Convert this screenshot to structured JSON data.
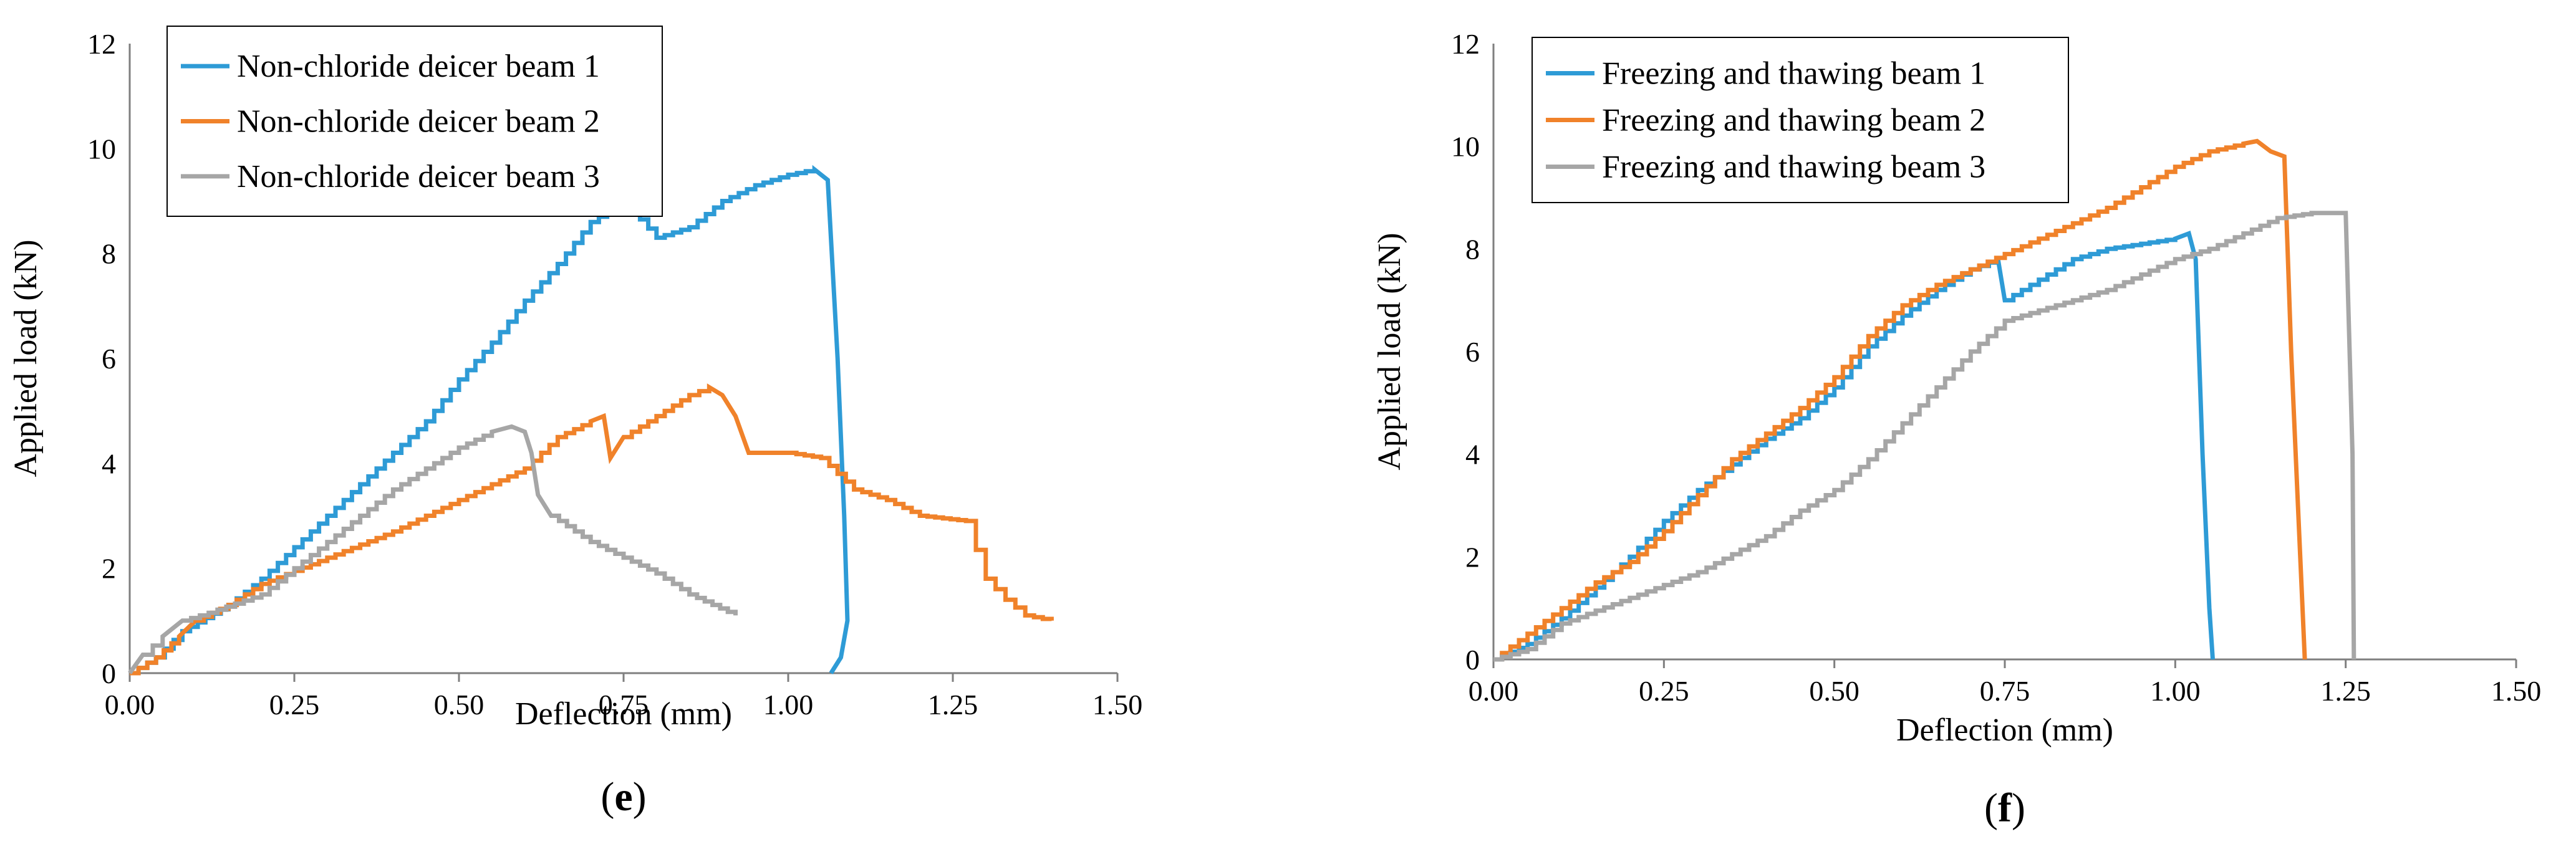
{
  "chart_data": [
    {
      "type": "line",
      "panel_label": "e",
      "xlabel": "Deflection (mm)",
      "ylabel": "Applied load (kN)",
      "xlim": [
        0,
        1.5
      ],
      "ylim": [
        0,
        12
      ],
      "xticks": [
        "0.00",
        "0.25",
        "0.50",
        "0.75",
        "1.00",
        "1.25",
        "1.50"
      ],
      "yticks": [
        "0",
        "2",
        "4",
        "6",
        "8",
        "10",
        "12"
      ],
      "grid": false,
      "legend_position": "top-left",
      "series": [
        {
          "name": "Non-chloride deicer beam 1",
          "color": "#2e9bd6",
          "points": [
            [
              0,
              0
            ],
            [
              0.04,
              0.3
            ],
            [
              0.08,
              0.8
            ],
            [
              0.15,
              1.3
            ],
            [
              0.2,
              1.8
            ],
            [
              0.25,
              2.4
            ],
            [
              0.3,
              3.0
            ],
            [
              0.35,
              3.6
            ],
            [
              0.4,
              4.2
            ],
            [
              0.45,
              4.8
            ],
            [
              0.5,
              5.6
            ],
            [
              0.55,
              6.3
            ],
            [
              0.6,
              7.1
            ],
            [
              0.65,
              7.8
            ],
            [
              0.7,
              8.6
            ],
            [
              0.75,
              9.0
            ],
            [
              0.8,
              8.3
            ],
            [
              0.85,
              8.5
            ],
            [
              0.9,
              9.0
            ],
            [
              0.95,
              9.3
            ],
            [
              1.0,
              9.5
            ],
            [
              1.04,
              9.6
            ],
            [
              1.06,
              9.4
            ],
            [
              1.075,
              6.0
            ],
            [
              1.085,
              3.0
            ],
            [
              1.09,
              1.0
            ],
            [
              1.08,
              0.3
            ],
            [
              1.065,
              0
            ]
          ]
        },
        {
          "name": "Non-chloride deicer beam 2",
          "color": "#f0822a",
          "points": [
            [
              0,
              0
            ],
            [
              0.04,
              0.3
            ],
            [
              0.075,
              0.7
            ],
            [
              0.1,
              1.0
            ],
            [
              0.15,
              1.3
            ],
            [
              0.2,
              1.7
            ],
            [
              0.3,
              2.2
            ],
            [
              0.4,
              2.7
            ],
            [
              0.5,
              3.3
            ],
            [
              0.6,
              3.9
            ],
            [
              0.65,
              4.5
            ],
            [
              0.7,
              4.8
            ],
            [
              0.72,
              4.9
            ],
            [
              0.73,
              4.1
            ],
            [
              0.75,
              4.5
            ],
            [
              0.8,
              4.9
            ],
            [
              0.85,
              5.3
            ],
            [
              0.88,
              5.45
            ],
            [
              0.9,
              5.3
            ],
            [
              0.92,
              4.9
            ],
            [
              0.94,
              4.2
            ],
            [
              1.0,
              4.2
            ],
            [
              1.05,
              4.1
            ],
            [
              1.1,
              3.5
            ],
            [
              1.15,
              3.3
            ],
            [
              1.2,
              3.0
            ],
            [
              1.27,
              2.9
            ],
            [
              1.3,
              1.8
            ],
            [
              1.33,
              1.4
            ],
            [
              1.36,
              1.1
            ],
            [
              1.4,
              1.0
            ]
          ]
        },
        {
          "name": "Non-chloride deicer beam 3",
          "color": "#a6a6a6",
          "points": [
            [
              0,
              0
            ],
            [
              0.02,
              0.35
            ],
            [
              0.05,
              0.7
            ],
            [
              0.08,
              1.0
            ],
            [
              0.12,
              1.15
            ],
            [
              0.2,
              1.5
            ],
            [
              0.3,
              2.5
            ],
            [
              0.4,
              3.5
            ],
            [
              0.5,
              4.3
            ],
            [
              0.55,
              4.6
            ],
            [
              0.58,
              4.7
            ],
            [
              0.6,
              4.6
            ],
            [
              0.61,
              4.2
            ],
            [
              0.62,
              3.4
            ],
            [
              0.64,
              3.0
            ],
            [
              0.7,
              2.5
            ],
            [
              0.8,
              1.9
            ],
            [
              0.85,
              1.5
            ],
            [
              0.92,
              1.1
            ]
          ]
        }
      ]
    },
    {
      "type": "line",
      "panel_label": "f",
      "xlabel": "Deflection (mm)",
      "ylabel": "Applied load (kN)",
      "xlim": [
        0,
        1.5
      ],
      "ylim": [
        0,
        12
      ],
      "xticks": [
        "0.00",
        "0.25",
        "0.50",
        "0.75",
        "1.00",
        "1.25",
        "1.50"
      ],
      "yticks": [
        "0",
        "2",
        "4",
        "6",
        "8",
        "10",
        "12"
      ],
      "grid": false,
      "legend_position": "top-left",
      "series": [
        {
          "name": "Freezing and thawing beam 1",
          "color": "#2e9bd6",
          "points": [
            [
              0,
              0
            ],
            [
              0.05,
              0.3
            ],
            [
              0.1,
              0.8
            ],
            [
              0.15,
              1.4
            ],
            [
              0.2,
              2.0
            ],
            [
              0.25,
              2.7
            ],
            [
              0.3,
              3.3
            ],
            [
              0.35,
              3.8
            ],
            [
              0.4,
              4.3
            ],
            [
              0.45,
              4.7
            ],
            [
              0.5,
              5.3
            ],
            [
              0.55,
              6.1
            ],
            [
              0.6,
              6.7
            ],
            [
              0.65,
              7.2
            ],
            [
              0.7,
              7.6
            ],
            [
              0.74,
              7.8
            ],
            [
              0.75,
              7.0
            ],
            [
              0.8,
              7.4
            ],
            [
              0.85,
              7.8
            ],
            [
              0.9,
              8.0
            ],
            [
              0.95,
              8.1
            ],
            [
              1.0,
              8.2
            ],
            [
              1.02,
              8.3
            ],
            [
              1.03,
              7.8
            ],
            [
              1.04,
              4.0
            ],
            [
              1.05,
              1.0
            ],
            [
              1.055,
              0
            ]
          ]
        },
        {
          "name": "Freezing and thawing beam 2",
          "color": "#f0822a",
          "points": [
            [
              0,
              0
            ],
            [
              0.05,
              0.5
            ],
            [
              0.1,
              1.0
            ],
            [
              0.15,
              1.5
            ],
            [
              0.2,
              1.9
            ],
            [
              0.25,
              2.5
            ],
            [
              0.3,
              3.2
            ],
            [
              0.35,
              3.9
            ],
            [
              0.4,
              4.4
            ],
            [
              0.45,
              4.9
            ],
            [
              0.5,
              5.5
            ],
            [
              0.55,
              6.3
            ],
            [
              0.6,
              6.9
            ],
            [
              0.65,
              7.3
            ],
            [
              0.7,
              7.6
            ],
            [
              0.75,
              7.9
            ],
            [
              0.8,
              8.2
            ],
            [
              0.85,
              8.5
            ],
            [
              0.9,
              8.8
            ],
            [
              0.95,
              9.2
            ],
            [
              1.0,
              9.6
            ],
            [
              1.05,
              9.9
            ],
            [
              1.1,
              10.05
            ],
            [
              1.12,
              10.1
            ],
            [
              1.14,
              9.9
            ],
            [
              1.16,
              9.8
            ],
            [
              1.17,
              6.0
            ],
            [
              1.18,
              3.0
            ],
            [
              1.19,
              0
            ]
          ]
        },
        {
          "name": "Freezing and thawing beam 3",
          "color": "#a6a6a6",
          "points": [
            [
              0,
              0
            ],
            [
              0.05,
              0.2
            ],
            [
              0.1,
              0.7
            ],
            [
              0.15,
              0.95
            ],
            [
              0.2,
              1.2
            ],
            [
              0.3,
              1.7
            ],
            [
              0.4,
              2.4
            ],
            [
              0.45,
              2.9
            ],
            [
              0.5,
              3.3
            ],
            [
              0.55,
              3.9
            ],
            [
              0.6,
              4.6
            ],
            [
              0.65,
              5.3
            ],
            [
              0.7,
              6.0
            ],
            [
              0.75,
              6.6
            ],
            [
              0.8,
              6.8
            ],
            [
              0.85,
              7.0
            ],
            [
              0.9,
              7.2
            ],
            [
              0.95,
              7.5
            ],
            [
              1.0,
              7.8
            ],
            [
              1.05,
              8.0
            ],
            [
              1.1,
              8.3
            ],
            [
              1.15,
              8.6
            ],
            [
              1.2,
              8.7
            ],
            [
              1.25,
              8.7
            ],
            [
              1.26,
              4.0
            ],
            [
              1.262,
              0
            ]
          ]
        }
      ]
    }
  ]
}
